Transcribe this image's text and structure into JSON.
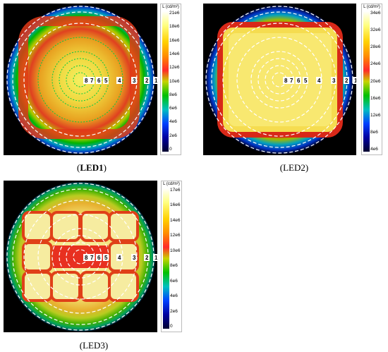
{
  "panels": [
    {
      "id": "led1",
      "caption": "LED1",
      "bar_title": "L (cd/m²)",
      "ticks": [
        "21e6",
        "18e6",
        "16e6",
        "14e6",
        "12e6",
        "10e6",
        "8e6",
        "6e6",
        "4e6",
        "2e6",
        "0"
      ],
      "ring_labels": [
        "8",
        "7",
        "6",
        "5",
        "4",
        "3",
        "2",
        "1"
      ]
    },
    {
      "id": "led2",
      "caption": "LED2",
      "bar_title": "L (cd/m²)",
      "ticks": [
        "34e6",
        "32e6",
        "28e6",
        "24e6",
        "20e6",
        "16e6",
        "12e6",
        "8e6",
        "4e6"
      ],
      "ring_labels": [
        "8",
        "7",
        "6",
        "5",
        "4",
        "3",
        "2",
        "1"
      ]
    },
    {
      "id": "led3",
      "caption": "LED3",
      "bar_title": "L (cd/m²)",
      "ticks": [
        "17e6",
        "16e6",
        "14e6",
        "12e6",
        "10e6",
        "8e6",
        "6e6",
        "4e6",
        "2e6",
        "0"
      ],
      "ring_labels": [
        "8",
        "7",
        "6",
        "5",
        "4",
        "3",
        "2",
        "1"
      ]
    }
  ],
  "colors": {
    "background": "#ffffff",
    "map_background": "#000000",
    "outer_ring": "#ffffff",
    "inner_rings": "#ffffff",
    "led1_inner_rings": "#00cc44"
  },
  "colorscale": [
    "#ffffff",
    "#ffff66",
    "#ffd700",
    "#ff8c00",
    "#ff2020",
    "#c8d400",
    "#00c800",
    "#00c8c8",
    "#0050ff",
    "#0000a0",
    "#000040"
  ]
}
